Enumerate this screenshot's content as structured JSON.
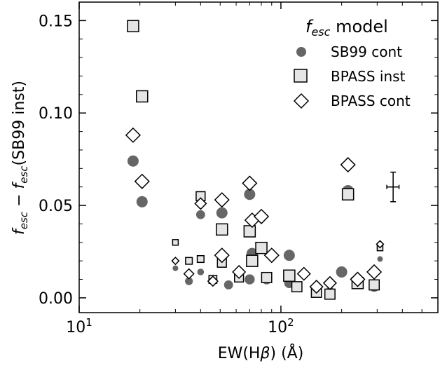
{
  "chart_data": {
    "type": "scatter",
    "xlabel_parts": [
      "EW(H",
      "β",
      ") (Å)"
    ],
    "ylabel_parts": [
      "f",
      "esc",
      " − ",
      "f",
      "esc",
      "(SB99 inst)"
    ],
    "xscale": "log",
    "xlim": [
      10,
      600
    ],
    "ylim": [
      -0.008,
      0.16
    ],
    "x_ticks": [
      {
        "value": 10,
        "base": "10",
        "exp": "1"
      },
      {
        "value": 100,
        "base": "10",
        "exp": "2"
      }
    ],
    "y_ticks": [
      "0.00",
      "0.05",
      "0.10",
      "0.15"
    ],
    "y_tick_values": [
      0.0,
      0.05,
      0.1,
      0.15
    ],
    "grid": false,
    "legend": {
      "position": "top-right",
      "title_parts": [
        "f",
        "esc",
        " model"
      ],
      "entries": [
        "SB99 cont",
        "BPASS inst",
        "BPASS cont"
      ]
    },
    "series": [
      {
        "name": "SB99 cont",
        "marker": "circle",
        "color": "#666666",
        "points": [
          {
            "x": 18.5,
            "y": 0.074,
            "s": 1.0
          },
          {
            "x": 20.5,
            "y": 0.052,
            "s": 1.0
          },
          {
            "x": 30,
            "y": 0.016,
            "s": 0.5
          },
          {
            "x": 35,
            "y": 0.009,
            "s": 0.7
          },
          {
            "x": 40,
            "y": 0.045,
            "s": 0.8
          },
          {
            "x": 40,
            "y": 0.014,
            "s": 0.6
          },
          {
            "x": 46,
            "y": 0.009,
            "s": 0.7
          },
          {
            "x": 51,
            "y": 0.046,
            "s": 1.0
          },
          {
            "x": 55,
            "y": 0.007,
            "s": 0.8
          },
          {
            "x": 70,
            "y": 0.056,
            "s": 1.0
          },
          {
            "x": 72,
            "y": 0.024,
            "s": 1.0
          },
          {
            "x": 70,
            "y": 0.01,
            "s": 0.9
          },
          {
            "x": 85,
            "y": 0.01,
            "s": 0.9
          },
          {
            "x": 110,
            "y": 0.023,
            "s": 1.0
          },
          {
            "x": 110,
            "y": 0.008,
            "s": 0.9
          },
          {
            "x": 150,
            "y": 0.004,
            "s": 0.9
          },
          {
            "x": 175,
            "y": 0.003,
            "s": 0.9
          },
          {
            "x": 200,
            "y": 0.014,
            "s": 1.0
          },
          {
            "x": 215,
            "y": 0.058,
            "s": 1.0
          },
          {
            "x": 240,
            "y": 0.009,
            "s": 1.0
          },
          {
            "x": 290,
            "y": 0.006,
            "s": 0.9
          },
          {
            "x": 310,
            "y": 0.021,
            "s": 0.5
          }
        ]
      },
      {
        "name": "BPASS inst",
        "marker": "square",
        "color": "#e5e5e5",
        "points": [
          {
            "x": 18.5,
            "y": 0.147,
            "s": 1.0
          },
          {
            "x": 20.5,
            "y": 0.109,
            "s": 1.0
          },
          {
            "x": 30,
            "y": 0.03,
            "s": 0.5
          },
          {
            "x": 35,
            "y": 0.02,
            "s": 0.6
          },
          {
            "x": 40,
            "y": 0.055,
            "s": 0.8
          },
          {
            "x": 40,
            "y": 0.021,
            "s": 0.6
          },
          {
            "x": 46,
            "y": 0.01,
            "s": 0.7
          },
          {
            "x": 51,
            "y": 0.037,
            "s": 1.0
          },
          {
            "x": 51,
            "y": 0.019,
            "s": 0.8
          },
          {
            "x": 62,
            "y": 0.011,
            "s": 0.8
          },
          {
            "x": 70,
            "y": 0.036,
            "s": 1.0
          },
          {
            "x": 72,
            "y": 0.02,
            "s": 1.0
          },
          {
            "x": 80,
            "y": 0.027,
            "s": 1.0
          },
          {
            "x": 85,
            "y": 0.011,
            "s": 0.9
          },
          {
            "x": 110,
            "y": 0.012,
            "s": 1.0
          },
          {
            "x": 120,
            "y": 0.006,
            "s": 0.9
          },
          {
            "x": 150,
            "y": 0.003,
            "s": 0.9
          },
          {
            "x": 175,
            "y": 0.002,
            "s": 0.9
          },
          {
            "x": 215,
            "y": 0.056,
            "s": 1.0
          },
          {
            "x": 240,
            "y": 0.008,
            "s": 1.0
          },
          {
            "x": 290,
            "y": 0.007,
            "s": 0.9
          },
          {
            "x": 310,
            "y": 0.027,
            "s": 0.5
          }
        ]
      },
      {
        "name": "BPASS cont",
        "marker": "diamond",
        "color": "#ffffff",
        "points": [
          {
            "x": 18.5,
            "y": 0.088,
            "s": 1.0
          },
          {
            "x": 20.5,
            "y": 0.063,
            "s": 1.0
          },
          {
            "x": 30,
            "y": 0.02,
            "s": 0.5
          },
          {
            "x": 35,
            "y": 0.013,
            "s": 0.7
          },
          {
            "x": 40,
            "y": 0.051,
            "s": 0.8
          },
          {
            "x": 46,
            "y": 0.009,
            "s": 0.7
          },
          {
            "x": 51,
            "y": 0.053,
            "s": 1.0
          },
          {
            "x": 51,
            "y": 0.023,
            "s": 1.0
          },
          {
            "x": 62,
            "y": 0.014,
            "s": 0.9
          },
          {
            "x": 70,
            "y": 0.062,
            "s": 1.0
          },
          {
            "x": 72,
            "y": 0.042,
            "s": 1.0
          },
          {
            "x": 80,
            "y": 0.044,
            "s": 1.0
          },
          {
            "x": 90,
            "y": 0.023,
            "s": 1.0
          },
          {
            "x": 130,
            "y": 0.013,
            "s": 0.9
          },
          {
            "x": 150,
            "y": 0.006,
            "s": 0.9
          },
          {
            "x": 175,
            "y": 0.008,
            "s": 0.9
          },
          {
            "x": 215,
            "y": 0.072,
            "s": 1.0
          },
          {
            "x": 240,
            "y": 0.01,
            "s": 1.0
          },
          {
            "x": 290,
            "y": 0.014,
            "s": 1.0
          },
          {
            "x": 310,
            "y": 0.029,
            "s": 0.5
          }
        ]
      }
    ],
    "error_bar": {
      "x": 360,
      "y": 0.06,
      "xerr": 25,
      "yerr": 0.008
    }
  }
}
